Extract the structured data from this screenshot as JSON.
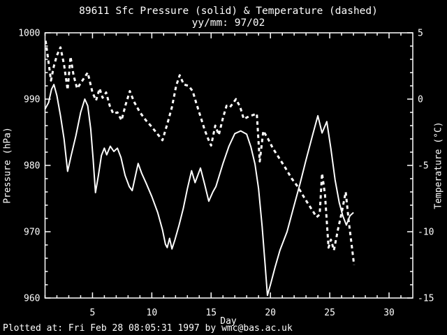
{
  "title": {
    "line1": "89611 Sfc Pressure (solid) & Temperature (dashed)",
    "line2": "yy/mm: 97/02"
  },
  "station_id": "89611",
  "footer": "Plotted at: Fri Feb 28 08:05:31 1997 by wmc@bas.ac.uk",
  "colors": {
    "background": "#000000",
    "foreground": "#ffffff"
  },
  "chart_data": {
    "type": "line",
    "title": "89611 Sfc Pressure (solid) & Temperature (dashed)",
    "subtitle": "yy/mm: 97/02",
    "grid": false,
    "legend": "none (line styles identified in title)",
    "x_axis": {
      "label": "Day",
      "range": [
        1,
        32
      ],
      "major_ticks": [
        5,
        10,
        15,
        20,
        25,
        30
      ],
      "minor_step": 1
    },
    "y_left": {
      "label": "Pressure (hPa)",
      "range": [
        960,
        1000
      ],
      "major_ticks": [
        1000,
        990,
        980,
        970,
        960
      ],
      "minor_step": 2
    },
    "y_right": {
      "label": "Temperature (°C)",
      "range": [
        -15,
        5
      ],
      "major_ticks": [
        5,
        0,
        -5,
        -10,
        -15
      ],
      "minor_step": 1
    },
    "series": [
      {
        "name": "Sfc Pressure (solid)",
        "style": "solid",
        "axis": "left",
        "unit": "hPa",
        "points": [
          [
            1.0,
            988.5
          ],
          [
            1.3,
            989.5
          ],
          [
            1.55,
            991.5
          ],
          [
            1.75,
            992.2
          ],
          [
            2.0,
            990.5
          ],
          [
            2.3,
            987.5
          ],
          [
            2.6,
            984.0
          ],
          [
            2.9,
            979.1
          ],
          [
            3.2,
            981.5
          ],
          [
            3.6,
            984.5
          ],
          [
            4.0,
            988.0
          ],
          [
            4.35,
            990.0
          ],
          [
            4.6,
            989.0
          ],
          [
            4.85,
            985.5
          ],
          [
            5.05,
            981.0
          ],
          [
            5.25,
            975.9
          ],
          [
            5.5,
            978.5
          ],
          [
            5.75,
            981.5
          ],
          [
            6.0,
            982.6
          ],
          [
            6.2,
            981.6
          ],
          [
            6.5,
            982.9
          ],
          [
            6.8,
            982.1
          ],
          [
            7.1,
            982.6
          ],
          [
            7.4,
            981.2
          ],
          [
            7.75,
            978.5
          ],
          [
            8.1,
            976.8
          ],
          [
            8.35,
            976.2
          ],
          [
            8.6,
            978.3
          ],
          [
            8.85,
            980.3
          ],
          [
            9.15,
            978.8
          ],
          [
            9.5,
            977.4
          ],
          [
            10.0,
            975.3
          ],
          [
            10.5,
            972.9
          ],
          [
            10.9,
            970.3
          ],
          [
            11.15,
            968.1
          ],
          [
            11.3,
            967.6
          ],
          [
            11.5,
            969.0
          ],
          [
            11.7,
            967.4
          ],
          [
            11.95,
            968.8
          ],
          [
            12.3,
            971.0
          ],
          [
            12.65,
            973.5
          ],
          [
            13.0,
            976.5
          ],
          [
            13.35,
            979.2
          ],
          [
            13.65,
            977.4
          ],
          [
            14.1,
            979.6
          ],
          [
            14.45,
            977.2
          ],
          [
            14.8,
            974.6
          ],
          [
            15.15,
            976.0
          ],
          [
            15.4,
            976.8
          ],
          [
            16.0,
            980.3
          ],
          [
            16.5,
            982.9
          ],
          [
            17.0,
            984.8
          ],
          [
            17.5,
            985.2
          ],
          [
            18.0,
            984.7
          ],
          [
            18.35,
            982.8
          ],
          [
            18.7,
            980.2
          ],
          [
            19.0,
            976.5
          ],
          [
            19.3,
            970.8
          ],
          [
            19.55,
            965.0
          ],
          [
            19.75,
            960.4
          ],
          [
            20.0,
            962.0
          ],
          [
            20.4,
            964.7
          ],
          [
            20.8,
            967.2
          ],
          [
            21.4,
            970.0
          ],
          [
            22.0,
            974.0
          ],
          [
            22.5,
            977.3
          ],
          [
            23.0,
            980.8
          ],
          [
            23.5,
            984.2
          ],
          [
            24.0,
            987.5
          ],
          [
            24.35,
            984.9
          ],
          [
            24.75,
            986.6
          ],
          [
            25.1,
            982.5
          ],
          [
            25.45,
            977.8
          ],
          [
            25.8,
            974.4
          ],
          [
            26.1,
            972.4
          ],
          [
            26.4,
            971.0
          ],
          [
            26.7,
            972.4
          ],
          [
            27.0,
            972.9
          ]
        ]
      },
      {
        "name": "Temperature (dashed)",
        "style": "dashed",
        "axis": "right",
        "unit": "°C",
        "points": [
          [
            1.05,
            4.4
          ],
          [
            1.25,
            3.1
          ],
          [
            1.5,
            1.4
          ],
          [
            1.75,
            2.5
          ],
          [
            2.0,
            3.3
          ],
          [
            2.3,
            3.9
          ],
          [
            2.6,
            2.6
          ],
          [
            2.9,
            0.7
          ],
          [
            3.15,
            3.2
          ],
          [
            3.4,
            1.8
          ],
          [
            3.7,
            0.8
          ],
          [
            4.0,
            1.2
          ],
          [
            4.3,
            1.6
          ],
          [
            4.6,
            2.0
          ],
          [
            5.0,
            0.5
          ],
          [
            5.3,
            -0.1
          ],
          [
            5.6,
            0.8
          ],
          [
            5.85,
            0.1
          ],
          [
            6.15,
            0.5
          ],
          [
            6.45,
            -0.5
          ],
          [
            6.75,
            -1.1
          ],
          [
            7.1,
            -1.0
          ],
          [
            7.45,
            -1.6
          ],
          [
            7.8,
            -0.4
          ],
          [
            8.15,
            0.6
          ],
          [
            8.5,
            -0.2
          ],
          [
            9.0,
            -1.0
          ],
          [
            9.5,
            -1.6
          ],
          [
            10.0,
            -2.1
          ],
          [
            10.45,
            -2.6
          ],
          [
            10.9,
            -3.1
          ],
          [
            11.3,
            -1.9
          ],
          [
            11.7,
            -0.6
          ],
          [
            12.05,
            1.0
          ],
          [
            12.35,
            1.8
          ],
          [
            12.7,
            1.1
          ],
          [
            13.1,
            1.0
          ],
          [
            13.45,
            0.6
          ],
          [
            13.75,
            -0.3
          ],
          [
            14.1,
            -1.3
          ],
          [
            14.45,
            -2.3
          ],
          [
            14.75,
            -3.0
          ],
          [
            15.0,
            -3.5
          ],
          [
            15.35,
            -2.0
          ],
          [
            15.65,
            -2.7
          ],
          [
            16.0,
            -1.4
          ],
          [
            16.3,
            -0.5
          ],
          [
            16.6,
            -0.6
          ],
          [
            17.1,
            0.0
          ],
          [
            17.45,
            -0.6
          ],
          [
            17.75,
            -1.5
          ],
          [
            18.2,
            -1.3
          ],
          [
            18.85,
            -1.1
          ],
          [
            19.1,
            -4.7
          ],
          [
            19.4,
            -2.4
          ],
          [
            19.8,
            -3.0
          ],
          [
            20.2,
            -3.7
          ],
          [
            20.7,
            -4.4
          ],
          [
            21.2,
            -5.1
          ],
          [
            21.8,
            -6.0
          ],
          [
            22.3,
            -6.6
          ],
          [
            22.9,
            -7.5
          ],
          [
            23.4,
            -8.2
          ],
          [
            23.9,
            -8.9
          ],
          [
            24.15,
            -8.7
          ],
          [
            24.35,
            -5.6
          ],
          [
            24.6,
            -7.2
          ],
          [
            24.9,
            -11.2
          ],
          [
            25.1,
            -10.6
          ],
          [
            25.35,
            -11.4
          ],
          [
            25.7,
            -9.8
          ],
          [
            26.0,
            -8.6
          ],
          [
            26.35,
            -7.0
          ],
          [
            26.6,
            -9.2
          ],
          [
            26.85,
            -11.0
          ],
          [
            27.05,
            -12.5
          ]
        ]
      }
    ]
  }
}
